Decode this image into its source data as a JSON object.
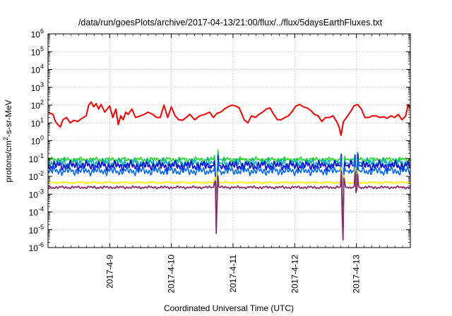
{
  "chart_data": {
    "type": "line",
    "title": "/data/run/goesPlots/archive/2017-04-13/21:00/flux/../flux/5daysEarthFluxes.txt",
    "xlabel": "Coordinated Universal Time (UTC)",
    "ylabel_parts": {
      "pre": "protons/cm",
      "sup": "2",
      "post": "-s-sr-MeV"
    },
    "y_scale": "log",
    "ylim": [
      -6,
      6
    ],
    "y_ticks": [
      {
        "exp": -6,
        "base": "10",
        "sup": "-6"
      },
      {
        "exp": -5,
        "base": "10",
        "sup": "-5"
      },
      {
        "exp": -4,
        "base": "10",
        "sup": "-4"
      },
      {
        "exp": -3,
        "base": "10",
        "sup": "-3"
      },
      {
        "exp": -2,
        "base": "10",
        "sup": "-2"
      },
      {
        "exp": -1,
        "base": "10",
        "sup": "-1"
      },
      {
        "exp": 0,
        "base": "10",
        "sup": "0"
      },
      {
        "exp": 1,
        "base": "10",
        "sup": "1"
      },
      {
        "exp": 2,
        "base": "10",
        "sup": "2"
      },
      {
        "exp": 3,
        "base": "10",
        "sup": "3"
      },
      {
        "exp": 4,
        "base": "10",
        "sup": "4"
      },
      {
        "exp": 5,
        "base": "10",
        "sup": "5"
      },
      {
        "exp": 6,
        "base": "10",
        "sup": "6"
      }
    ],
    "xlim_days": [
      8.0,
      13.875
    ],
    "x_ticks": [
      {
        "day": 9,
        "label": "2017-4-9"
      },
      {
        "day": 10,
        "label": "2017-4-10"
      },
      {
        "day": 11,
        "label": "2017-4-11"
      },
      {
        "day": 12,
        "label": "2017-4-12"
      },
      {
        "day": 13,
        "label": "2017-4-13"
      }
    ],
    "grid": true,
    "series": [
      {
        "color": "#ff0000",
        "width": 2,
        "x": [
          8.0,
          8.08,
          8.12,
          8.16,
          8.2,
          8.24,
          8.3,
          8.36,
          8.42,
          8.48,
          8.55,
          8.62,
          8.66,
          8.7,
          8.74,
          8.78,
          8.82,
          8.86,
          8.92,
          9.0,
          9.05,
          9.1,
          9.14,
          9.18,
          9.22,
          9.26,
          9.3,
          9.36,
          9.42,
          9.5,
          9.56,
          9.62,
          9.7,
          9.76,
          9.82,
          9.88,
          9.94,
          10.0,
          10.06,
          10.12,
          10.18,
          10.24,
          10.3,
          10.38,
          10.46,
          10.54,
          10.62,
          10.68,
          10.74,
          10.8,
          10.86,
          10.92,
          10.98,
          11.04,
          11.1,
          11.18,
          11.24,
          11.3,
          11.36,
          11.42,
          11.48,
          11.54,
          11.6,
          11.66,
          11.72,
          11.78,
          11.84,
          11.9,
          11.96,
          12.02,
          12.08,
          12.14,
          12.2,
          12.26,
          12.32,
          12.38,
          12.44,
          12.5,
          12.56,
          12.62,
          12.68,
          12.72,
          12.75,
          12.79,
          12.84,
          12.9,
          12.96,
          13.02,
          13.08,
          13.14,
          13.2,
          13.26,
          13.32,
          13.38,
          13.44,
          13.5,
          13.56,
          13.62,
          13.68,
          13.74,
          13.8,
          13.84,
          13.875
        ],
        "y": [
          40,
          30,
          12,
          8,
          6,
          15,
          20,
          10,
          14,
          12,
          18,
          25,
          100,
          150,
          80,
          120,
          60,
          110,
          40,
          90,
          20,
          60,
          8,
          25,
          15,
          40,
          30,
          60,
          20,
          25,
          30,
          40,
          30,
          20,
          20,
          100,
          20,
          80,
          25,
          15,
          14,
          20,
          30,
          15,
          25,
          30,
          40,
          20,
          35,
          40,
          60,
          80,
          100,
          90,
          70,
          15,
          10,
          25,
          20,
          30,
          40,
          60,
          70,
          30,
          15,
          15,
          20,
          25,
          45,
          90,
          110,
          80,
          70,
          50,
          30,
          25,
          12,
          20,
          20,
          25,
          12,
          6,
          2,
          12,
          20,
          40,
          90,
          110,
          60,
          20,
          20,
          25,
          25,
          20,
          22,
          18,
          25,
          20,
          30,
          15,
          25,
          110,
          70
        ]
      }
    ],
    "band_series": [
      {
        "color": "#22dd22",
        "width": 1.6,
        "base": -1.05,
        "amp": 0.12,
        "phase": 0.3
      },
      {
        "color": "#00b0b0",
        "width": 1.6,
        "base": -1.25,
        "amp": 0.25,
        "phase": 1.1
      },
      {
        "color": "#1010e0",
        "width": 1.8,
        "base": -1.4,
        "amp": 0.25,
        "phase": 2.0
      },
      {
        "color": "#0066ff",
        "width": 1.6,
        "base": -1.7,
        "amp": 0.22,
        "phase": 2.7
      },
      {
        "color": "#ffee00",
        "width": 1.6,
        "base": -2.35,
        "amp": 0.06,
        "phase": 3.5
      },
      {
        "color": "#8b2e6e",
        "width": 1.8,
        "base": -2.62,
        "amp": 0.07,
        "phase": 4.2
      }
    ],
    "dips": [
      {
        "day": 10.73,
        "depths": [
          -4.3,
          -4.5,
          -4.6,
          -4.8,
          -4.8,
          -5.3
        ]
      },
      {
        "day": 12.78,
        "depths": [
          -4.6,
          -4.8,
          -5.1,
          -5.3,
          -5.4,
          -5.85
        ]
      },
      {
        "day": 13.0,
        "depths": [
          -2.9,
          -3.0,
          -3.0,
          -3.1,
          -3.1,
          -3.3
        ]
      }
    ]
  }
}
